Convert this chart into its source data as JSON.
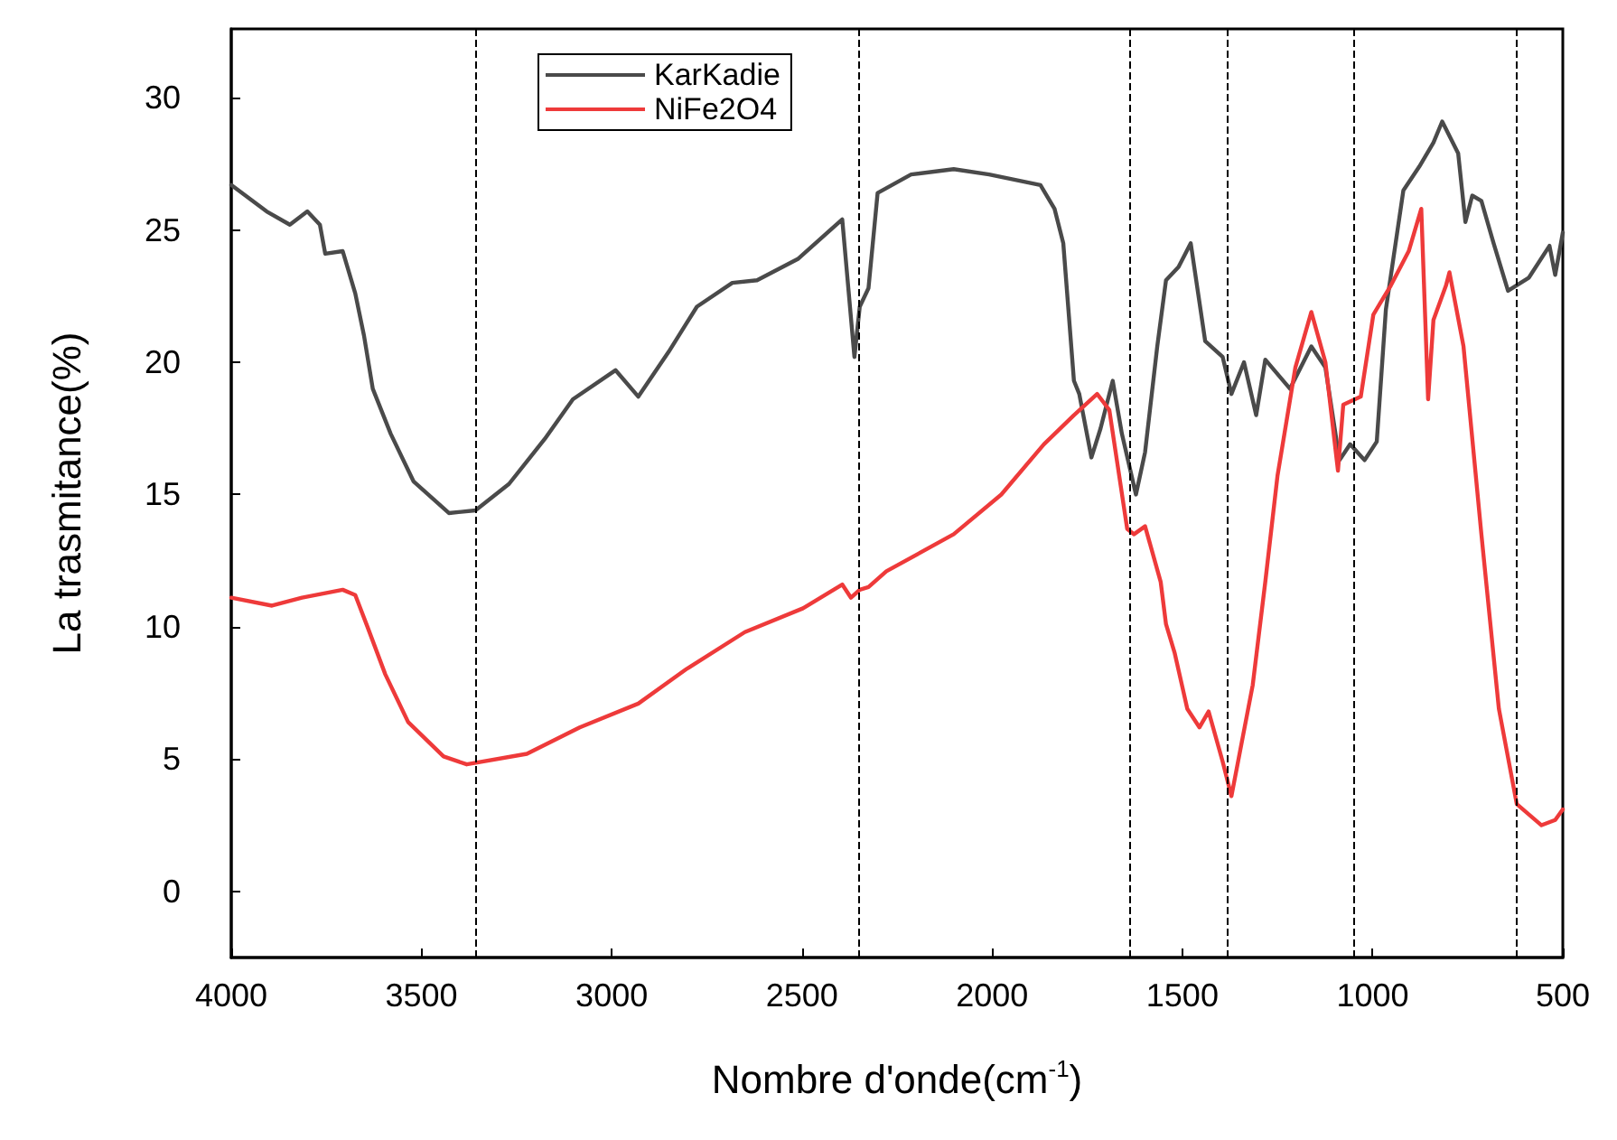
{
  "chart_data": {
    "type": "line",
    "xlabel": "Nombre d'onde(cm$^{-1}$)",
    "ylabel": "La trasmitance(%)",
    "xlim": [
      4000,
      500
    ],
    "xticks": [
      4000,
      3500,
      3000,
      2500,
      2000,
      1500,
      1000,
      500
    ],
    "ylim": [
      -2.5,
      32.6
    ],
    "yticks": [
      0,
      5,
      10,
      15,
      20,
      25,
      30
    ],
    "grid": false,
    "legend": "top left",
    "marker": "none",
    "line_style": "solid",
    "ref_lines": [
      {
        "axis": "x",
        "value": 3360,
        "color": "#000000",
        "line_style": "dashed"
      },
      {
        "axis": "x",
        "value": 2350,
        "color": "#000000",
        "line_style": "dashed"
      },
      {
        "axis": "x",
        "value": 1640,
        "color": "#000000",
        "line_style": "dashed"
      },
      {
        "axis": "x",
        "value": 1380,
        "color": "#000000",
        "line_style": "dashed"
      },
      {
        "axis": "x",
        "value": 1050,
        "color": "#000000",
        "line_style": "dashed"
      },
      {
        "axis": "x",
        "value": 620,
        "color": "#000000",
        "line_style": "dashed"
      }
    ],
    "series": [
      {
        "name": "KarKadie",
        "color": "#4a4a4a",
        "x": [
          4000,
          3907,
          3846,
          3800,
          3767,
          3753,
          3707,
          3674,
          3651,
          3628,
          3581,
          3521,
          3428,
          3358,
          3270,
          3176,
          3102,
          2990,
          2930,
          2850,
          2776,
          2683,
          2618,
          2511,
          2394,
          2362,
          2348,
          2325,
          2301,
          2213,
          2101,
          2008,
          1873,
          1836,
          1813,
          1785,
          1771,
          1739,
          1715,
          1683,
          1659,
          1622,
          1598,
          1566,
          1543,
          1510,
          1478,
          1440,
          1394,
          1371,
          1338,
          1306,
          1282,
          1217,
          1161,
          1124,
          1087,
          1059,
          1021,
          989,
          965,
          919,
          877,
          840,
          817,
          775,
          756,
          738,
          714,
          682,
          644,
          589,
          535,
          520,
          500
        ],
        "values": [
          26.7,
          25.7,
          25.2,
          25.7,
          25.2,
          24.1,
          24.2,
          22.6,
          21.0,
          19.0,
          17.3,
          15.5,
          14.3,
          14.4,
          15.4,
          17.1,
          18.6,
          19.7,
          18.7,
          20.4,
          22.1,
          23.0,
          23.1,
          23.9,
          25.4,
          20.2,
          22.1,
          22.8,
          26.4,
          27.1,
          27.3,
          27.1,
          26.7,
          25.8,
          24.5,
          19.3,
          18.8,
          16.4,
          17.5,
          19.3,
          17.3,
          15.0,
          16.6,
          20.6,
          23.1,
          23.6,
          24.5,
          20.8,
          20.2,
          18.8,
          20.0,
          18.0,
          20.1,
          19.0,
          20.6,
          19.8,
          16.3,
          16.9,
          16.3,
          17.0,
          22.0,
          26.5,
          27.4,
          28.3,
          29.1,
          27.9,
          25.3,
          26.3,
          26.1,
          24.5,
          22.7,
          23.2,
          24.4,
          23.3,
          24.9
        ]
      },
      {
        "name": "NiFe2O4",
        "color": "#ee3a3a",
        "x": [
          4000,
          3893,
          3814,
          3707,
          3674,
          3642,
          3595,
          3535,
          3442,
          3381,
          3223,
          3084,
          2930,
          2804,
          2650,
          2497,
          2394,
          2371,
          2348,
          2325,
          2278,
          2101,
          1976,
          1864,
          1785,
          1724,
          1692,
          1645,
          1627,
          1598,
          1557,
          1543,
          1520,
          1487,
          1455,
          1431,
          1394,
          1371,
          1347,
          1315,
          1282,
          1250,
          1203,
          1161,
          1124,
          1091,
          1077,
          1031,
          998,
          952,
          905,
          872,
          854,
          840,
          807,
          798,
          761,
          714,
          668,
          621,
          556,
          520,
          500
        ],
        "values": [
          11.1,
          10.8,
          11.1,
          11.4,
          11.2,
          10.0,
          8.2,
          6.4,
          5.1,
          4.8,
          5.2,
          6.2,
          7.1,
          8.4,
          9.8,
          10.7,
          11.6,
          11.1,
          11.4,
          11.5,
          12.1,
          13.5,
          15.0,
          16.9,
          18.0,
          18.8,
          18.2,
          13.7,
          13.5,
          13.8,
          11.7,
          10.1,
          9.0,
          6.9,
          6.2,
          6.8,
          4.9,
          3.6,
          5.4,
          7.8,
          11.7,
          15.7,
          19.8,
          21.9,
          20.0,
          15.9,
          18.4,
          18.7,
          21.8,
          22.9,
          24.2,
          25.8,
          18.6,
          21.6,
          22.9,
          23.4,
          20.6,
          13.5,
          6.9,
          3.3,
          2.5,
          2.7,
          3.1
        ]
      }
    ]
  }
}
